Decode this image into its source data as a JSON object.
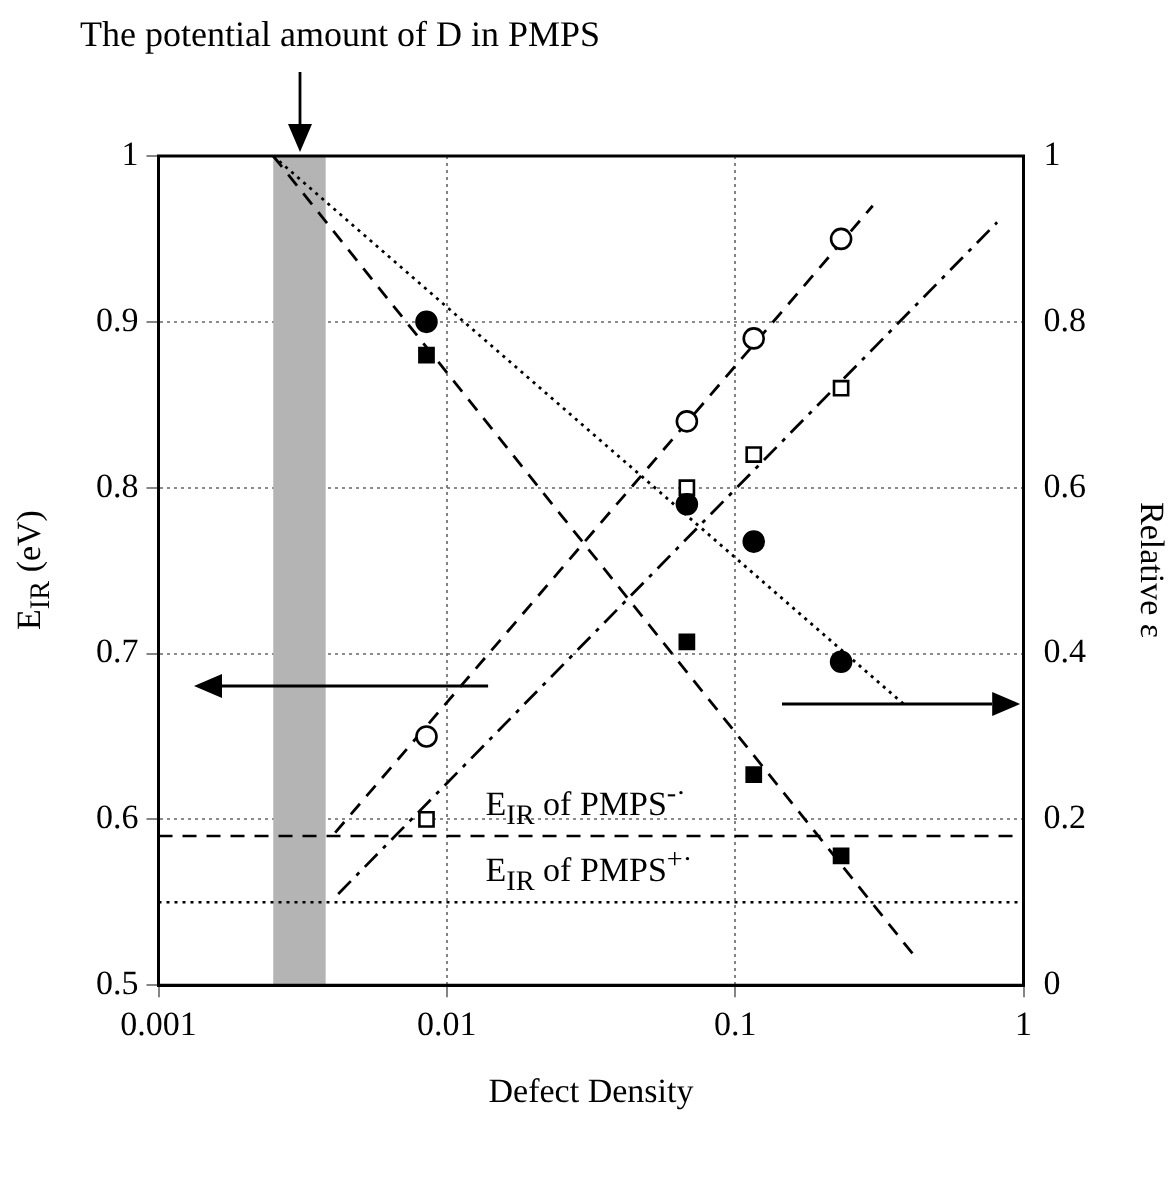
{
  "chart_data": {
    "type": "scatter",
    "xlabel": "Defect Density",
    "ylabel": "E$_{IR}$ (eV)",
    "y2label": "Relative ε",
    "annotations": [
      "The potential amount of D in PMPS"
    ],
    "log": "x",
    "grid": true,
    "xlim": [
      0.001,
      1
    ],
    "xticks": [
      0.001,
      0.01,
      0.1,
      1
    ],
    "ylim": [
      0.5,
      1
    ],
    "yticks": [
      0.5,
      0.6,
      0.7,
      0.8,
      0.9,
      1
    ],
    "y2lim": [
      0,
      1
    ],
    "y2ticks": [
      0,
      0.2,
      0.4,
      0.6,
      0.8,
      1
    ],
    "series": [
      {
        "type": "scatter",
        "marker": "circle",
        "color": "#000000",
        "axis": "y2",
        "x": [
          0.0085,
          0.068,
          0.116,
          0.233
        ],
        "values": [
          0.8,
          0.58,
          0.535,
          0.39
        ]
      },
      {
        "type": "scatter",
        "marker": "square",
        "color": "#000000",
        "x": [
          0.0085,
          0.068,
          0.116,
          0.233
        ],
        "values": [
          0.88,
          0.707,
          0.627,
          0.578
        ]
      },
      {
        "type": "scatter",
        "marker": "circle",
        "color": "#ffffff",
        "x": [
          0.0085,
          0.068,
          0.116,
          0.233
        ],
        "values": [
          0.65,
          0.84,
          0.89,
          0.95
        ]
      },
      {
        "type": "scatter",
        "marker": "square",
        "color": "#ffffff",
        "x": [
          0.0085,
          0.068,
          0.116,
          0.233
        ],
        "values": [
          0.6,
          0.8,
          0.82,
          0.86
        ]
      },
      {
        "type": "line",
        "marker": "none",
        "line_style": "dotted",
        "color": "#000000",
        "axis": "y2",
        "x": [
          0.0025,
          0.39
        ],
        "values": [
          1,
          0.337
        ]
      },
      {
        "type": "line",
        "marker": "none",
        "line_style": "dashed",
        "color": "#000000",
        "x": [
          0.0025,
          0.417
        ],
        "values": [
          1,
          0.518
        ]
      },
      {
        "type": "line",
        "marker": "none",
        "line_style": "dashed",
        "color": "#000000",
        "x": [
          0.0041,
          0.3
        ],
        "values": [
          0.592,
          0.97
        ]
      },
      {
        "type": "line",
        "marker": "none",
        "line_style": "dashdot",
        "color": "#000000",
        "x": [
          0.0042,
          0.81
        ],
        "values": [
          0.555,
          0.96
        ]
      }
    ],
    "ref_lines": [
      {
        "axis": "y",
        "value": 0.59,
        "label": "E$_{IR}$ of PMPS$^{-·}$",
        "line_style": "dashed",
        "color": "#000000"
      },
      {
        "axis": "y",
        "value": 0.55,
        "label": "E$_{IR}$ of PMPS$^{+·}$",
        "line_style": "dotted",
        "color": "#000000"
      }
    ],
    "bands": [
      {
        "axis": "x",
        "from": 0.0025,
        "to": 0.0038,
        "color": "#b4b4b4"
      }
    ]
  }
}
